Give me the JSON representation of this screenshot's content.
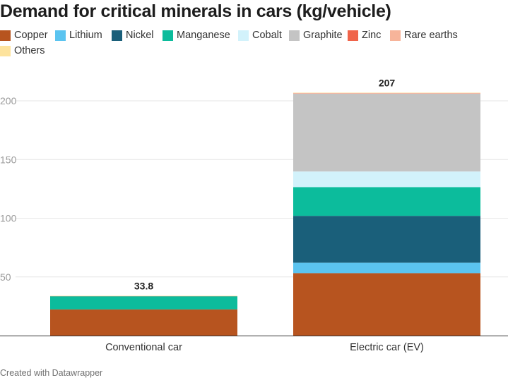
{
  "title": "Demand for critical minerals in cars (kg/vehicle)",
  "footer": "Created with Datawrapper",
  "chart_data": {
    "type": "bar",
    "stacked": true,
    "title": "Demand for critical minerals in cars (kg/vehicle)",
    "categories": [
      "Conventional car",
      "Electric car (EV)"
    ],
    "totals": [
      "33.8",
      "207"
    ],
    "ylim": [
      0,
      210
    ],
    "yticks": [
      50,
      100,
      150,
      200
    ],
    "grid": true,
    "legend_position": "top-left",
    "series": [
      {
        "name": "Copper",
        "color": "#b7541f",
        "values": [
          22.3,
          53.2
        ]
      },
      {
        "name": "Lithium",
        "color": "#5bc4f0",
        "values": [
          0,
          8.9
        ]
      },
      {
        "name": "Nickel",
        "color": "#1a5f7a",
        "values": [
          0,
          39.9
        ]
      },
      {
        "name": "Manganese",
        "color": "#0cbc9c",
        "values": [
          11.2,
          24.5
        ]
      },
      {
        "name": "Cobalt",
        "color": "#d2f2fb",
        "values": [
          0,
          13.3
        ]
      },
      {
        "name": "Graphite",
        "color": "#c4c4c4",
        "values": [
          0,
          66.3
        ]
      },
      {
        "name": "Zinc",
        "color": "#f0644a",
        "values": [
          0.1,
          0.1
        ]
      },
      {
        "name": "Rare earths",
        "color": "#f7b49a",
        "values": [
          0,
          0.5
        ]
      },
      {
        "name": "Others",
        "color": "#fde39d",
        "values": [
          0.3,
          0.3
        ]
      }
    ]
  }
}
